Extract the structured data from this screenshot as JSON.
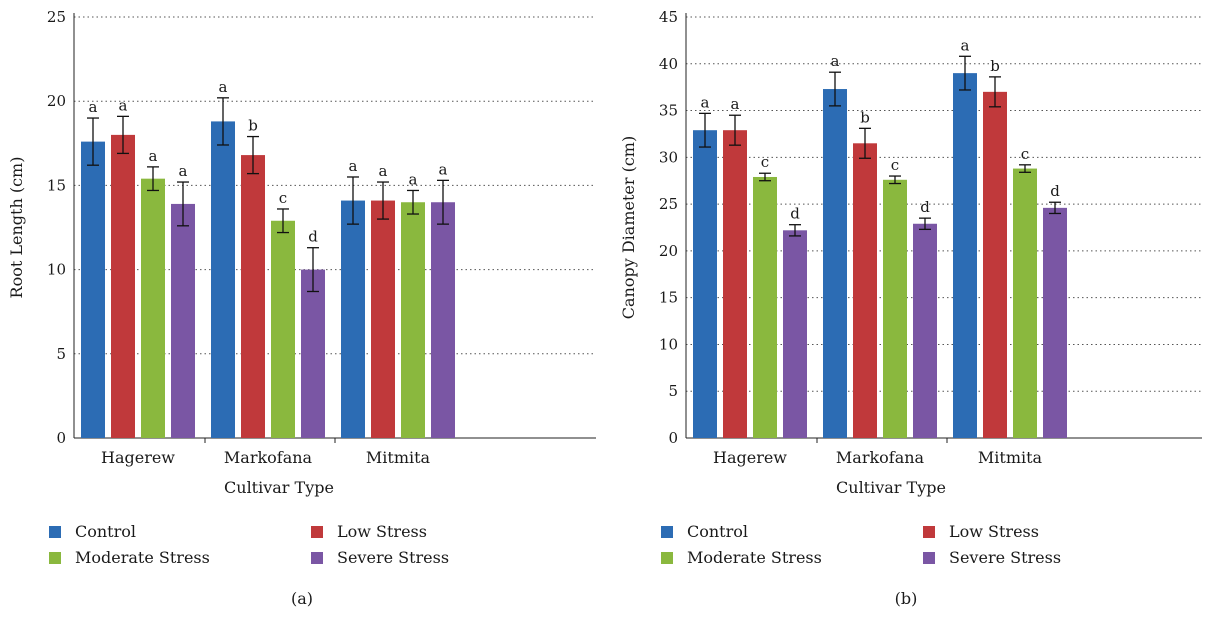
{
  "series_colors": [
    "#2c6cb4",
    "#c0393b",
    "#8ab83e",
    "#7a56a4"
  ],
  "chart_data": [
    {
      "type": "bar",
      "panel_label": "(a)",
      "xlabel": "Cultivar Type",
      "ylabel": "Root Length (cm)",
      "ylim": [
        0,
        25
      ],
      "yticks": [
        0,
        5,
        10,
        15,
        20,
        25
      ],
      "grid": true,
      "legend_position": "bottom",
      "categories": [
        "Hagerew",
        "Markofana",
        "Mitmita"
      ],
      "series": [
        {
          "name": "Control",
          "values": [
            17.6,
            18.8,
            14.1
          ],
          "errors": [
            1.4,
            1.4,
            1.4
          ],
          "letters": [
            "a",
            "a",
            "a"
          ]
        },
        {
          "name": "Low Stress",
          "values": [
            18.0,
            16.8,
            14.1
          ],
          "errors": [
            1.1,
            1.1,
            1.1
          ],
          "letters": [
            "a",
            "b",
            "a"
          ]
        },
        {
          "name": "Moderate Stress",
          "values": [
            15.4,
            12.9,
            14.0
          ],
          "errors": [
            0.7,
            0.7,
            0.7
          ],
          "letters": [
            "a",
            "c",
            "a"
          ]
        },
        {
          "name": "Severe Stress",
          "values": [
            13.9,
            10.0,
            14.0
          ],
          "errors": [
            1.3,
            1.3,
            1.3
          ],
          "letters": [
            "a",
            "d",
            "a"
          ]
        }
      ]
    },
    {
      "type": "bar",
      "panel_label": "(b)",
      "xlabel": "Cultivar Type",
      "ylabel": "Canopy Diameter (cm)",
      "ylim": [
        0,
        45
      ],
      "yticks": [
        0,
        5,
        10,
        15,
        20,
        25,
        30,
        35,
        40,
        45
      ],
      "grid": true,
      "legend_position": "bottom",
      "categories": [
        "Hagerew",
        "Markofana",
        "Mitmita"
      ],
      "series": [
        {
          "name": "Control",
          "values": [
            32.9,
            37.3,
            39.0
          ],
          "errors": [
            1.8,
            1.8,
            1.8
          ],
          "letters": [
            "a",
            "a",
            "a"
          ]
        },
        {
          "name": "Low Stress",
          "values": [
            32.9,
            31.5,
            37.0
          ],
          "errors": [
            1.6,
            1.6,
            1.6
          ],
          "letters": [
            "a",
            "b",
            "b"
          ]
        },
        {
          "name": "Moderate Stress",
          "values": [
            27.9,
            27.6,
            28.8
          ],
          "errors": [
            0.4,
            0.4,
            0.4
          ],
          "letters": [
            "c",
            "c",
            "c"
          ]
        },
        {
          "name": "Severe Stress",
          "values": [
            22.2,
            22.9,
            24.6
          ],
          "errors": [
            0.6,
            0.6,
            0.6
          ],
          "letters": [
            "d",
            "d",
            "d"
          ]
        }
      ]
    }
  ]
}
